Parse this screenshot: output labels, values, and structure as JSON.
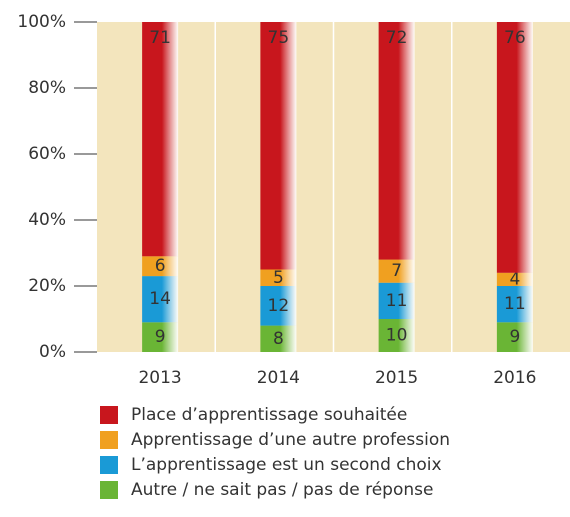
{
  "chart_data": {
    "type": "stacked_bar",
    "categories": [
      "2013",
      "2014",
      "2015",
      "2016"
    ],
    "series": [
      {
        "name": "Place d’apprentissage souhaitée",
        "color": "#c8161d",
        "values": [
          71,
          75,
          72,
          76
        ]
      },
      {
        "name": "Apprentissage d’une autre profession",
        "color": "#f0a020",
        "values": [
          6,
          5,
          7,
          4
        ]
      },
      {
        "name": "L’apprentissage est un second choix",
        "color": "#1a9ad6",
        "values": [
          14,
          12,
          11,
          11
        ]
      },
      {
        "name": "Autre / ne sait pas / pas de réponse",
        "color": "#6ab535",
        "values": [
          9,
          8,
          10,
          9
        ]
      }
    ],
    "ylim": [
      0,
      100
    ],
    "yticks": [
      {
        "value": 0,
        "label": "0%"
      },
      {
        "value": 20,
        "label": "20%"
      },
      {
        "value": 40,
        "label": "40%"
      },
      {
        "value": 60,
        "label": "60%"
      },
      {
        "value": 80,
        "label": "80%"
      },
      {
        "value": 100,
        "label": "100%"
      }
    ],
    "legend": "bottom"
  }
}
